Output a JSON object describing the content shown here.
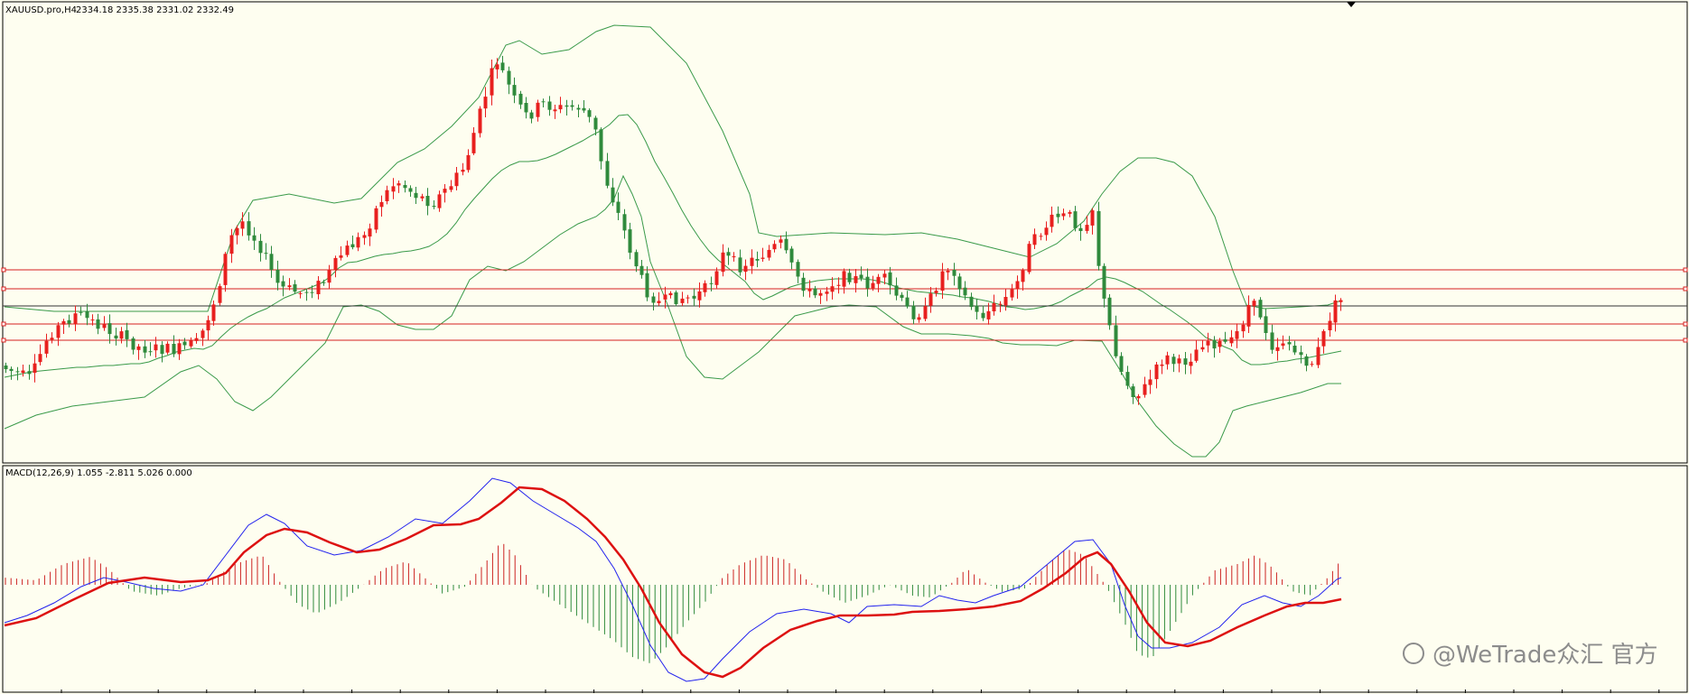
{
  "header": {
    "symbol_label": "XAUUSD.pro,H4",
    "ohlc_label": "2334.18 2335.38 2331.02 2332.49"
  },
  "macd_panel": {
    "label": "MACD(12,26,9) 1.055 -2.811 5.026 0.000"
  },
  "watermark": {
    "text": "@WeTrade众汇 官方"
  },
  "colors": {
    "background": "#fefef0",
    "bull_candle": "#e8201f",
    "bear_candle": "#2f8a3c",
    "bollinger": "#3a9a4a",
    "level_lines": "#d62020",
    "current_price_line": "#333333",
    "macd_line": "#2222ee",
    "signal_line": "#dd1111",
    "hist_positive": "#cc2222",
    "hist_negative": "#2f8a3c"
  },
  "chart_data": [
    {
      "type": "candlestick",
      "symbol": "XAUUSD.pro",
      "timeframe": "H4",
      "last_bar": {
        "open": 2334.18,
        "high": 2335.38,
        "low": 2331.02,
        "close": 2332.49
      },
      "indicators": [
        "Bollinger Bands"
      ],
      "horizontal_levels": 4,
      "grid": false
    },
    {
      "type": "macd",
      "params": [
        12,
        26,
        9
      ],
      "values": {
        "macd": 1.055,
        "signal": -2.811,
        "histogram": 5.026,
        "zero": 0.0
      }
    }
  ]
}
